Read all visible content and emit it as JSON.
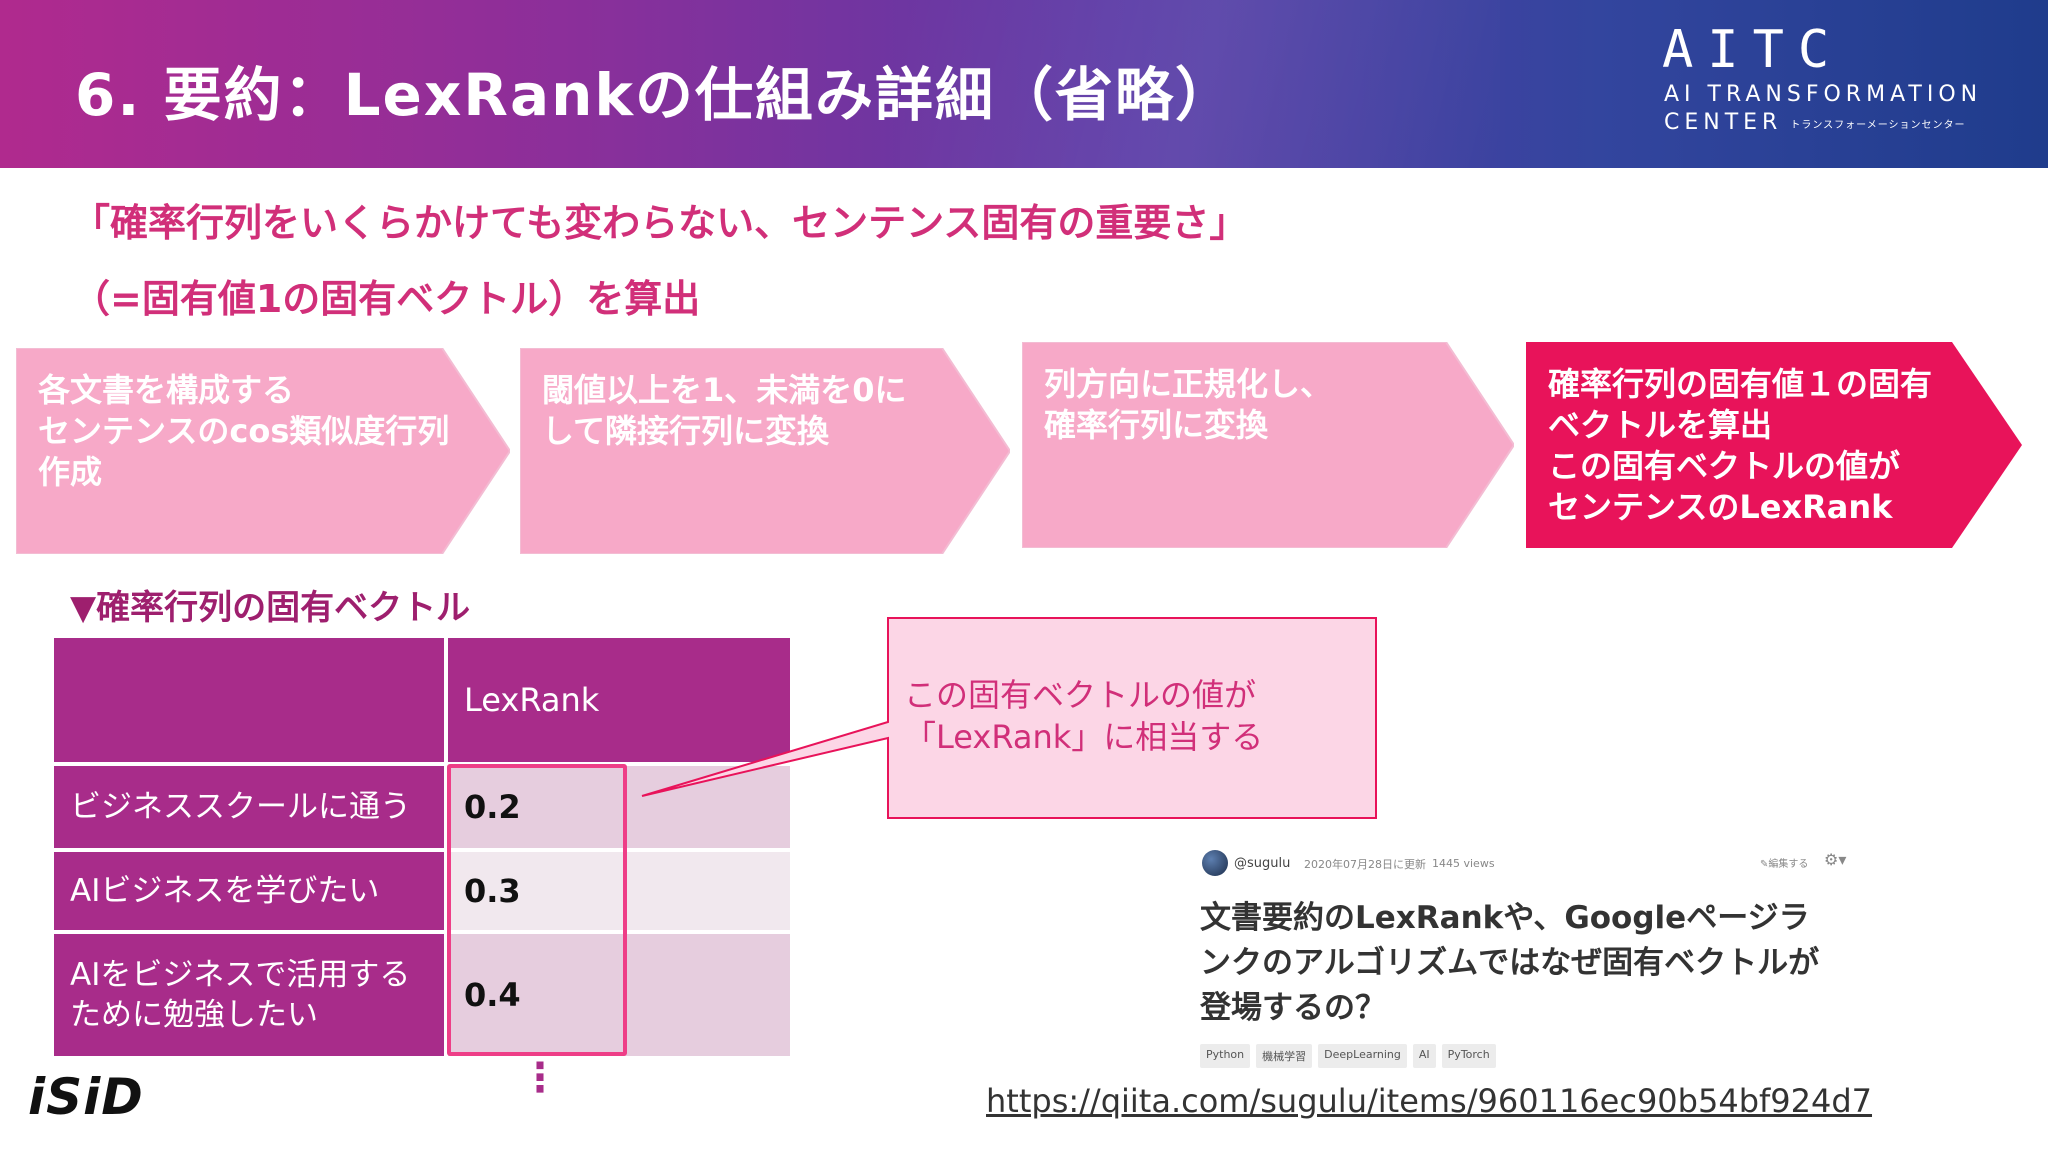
{
  "header": {
    "title": "6. 要約：LexRankの仕組み詳細（省略）",
    "logo_main": "AITC",
    "logo_line1": "AI TRANSFORMATION",
    "logo_line2": "CENTER",
    "logo_small": "トランスフォーメーションセンター"
  },
  "headline": {
    "line1": "「確率行列をいくらかけても変わらない、センテンス固有の重要さ」",
    "line2": "（=固有値1の固有ベクトル）を算出"
  },
  "steps": [
    {
      "text": "各文書を構成する\nセンテンスのcos類似度行列\n作成",
      "color": "#f7a9c8"
    },
    {
      "text": "閾値以上を1、未満を0に\nして隣接行列に変換",
      "color": "#f7a9c8"
    },
    {
      "text": "列方向に正規化し、\n確率行列に変換",
      "color": "#f7a9c8"
    },
    {
      "text": "確率行列の固有値１の固有\nベクトルを算出\nこの固有ベクトルの値が\nセンテンスのLexRank",
      "color": "#e8135a"
    }
  ],
  "table": {
    "title": "▼確率行列の固有ベクトル",
    "header": "LexRank",
    "rows": [
      {
        "label": "ビジネススクールに通う",
        "value": "0.2"
      },
      {
        "label": "AIビジネスを学びたい",
        "value": "0.3"
      },
      {
        "label": "AIをビジネスで活用するために勉強したい",
        "value": "0.4"
      }
    ],
    "more": "⋮"
  },
  "callout": {
    "line1": "この固有ベクトルの値が",
    "line2": "「LexRank」に相当する"
  },
  "qiita": {
    "user": "@sugulu",
    "date": "2020年07月28日に更新",
    "views": "1445 views",
    "edit": "✎編集する",
    "gear": "⚙▾",
    "title": "文書要約のLexRankや、Googleページランクのアルゴリズムではなぜ固有ベクトルが登場するの？",
    "tags": [
      "Python",
      "機械学習",
      "DeepLearning",
      "AI",
      "PyTorch"
    ]
  },
  "url": "https://qiita.com/sugulu/items/960116ec90b54bf924d7",
  "footer_logo": "iSiD"
}
